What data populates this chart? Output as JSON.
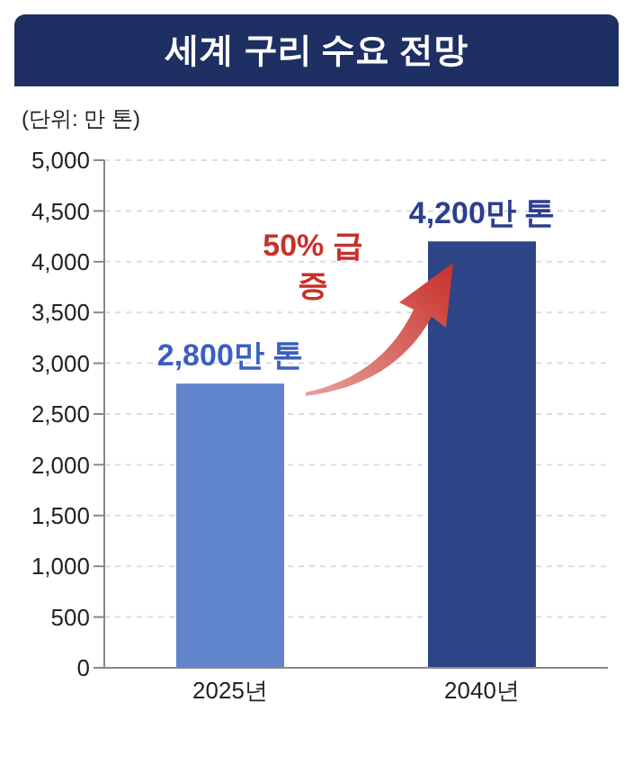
{
  "chart_data": {
    "type": "bar",
    "title": "세계 구리 수요 전망",
    "subtitle": "(단위: 만 톤)",
    "categories": [
      "2025년",
      "2040년"
    ],
    "values": [
      2800,
      4200
    ],
    "colors": [
      "#6185cc",
      "#2d4486"
    ],
    "value_labels": [
      "2,800만 톤",
      "4,200만 톤"
    ],
    "annotations": [
      "50% 급증"
    ],
    "ylim": [
      0,
      5000
    ],
    "yticks": [
      {
        "value": 0,
        "label": "0"
      },
      {
        "value": 500,
        "label": "500"
      },
      {
        "value": 1000,
        "label": "1,000"
      },
      {
        "value": 1500,
        "label": "1,500"
      },
      {
        "value": 2000,
        "label": "2,000"
      },
      {
        "value": 2500,
        "label": "2,500"
      },
      {
        "value": 3000,
        "label": "3,000"
      },
      {
        "value": 3500,
        "label": "3,500"
      },
      {
        "value": 4000,
        "label": "4,000"
      },
      {
        "value": 4500,
        "label": "4,500"
      },
      {
        "value": 5000,
        "label": "5,000"
      }
    ],
    "grid": "y"
  }
}
